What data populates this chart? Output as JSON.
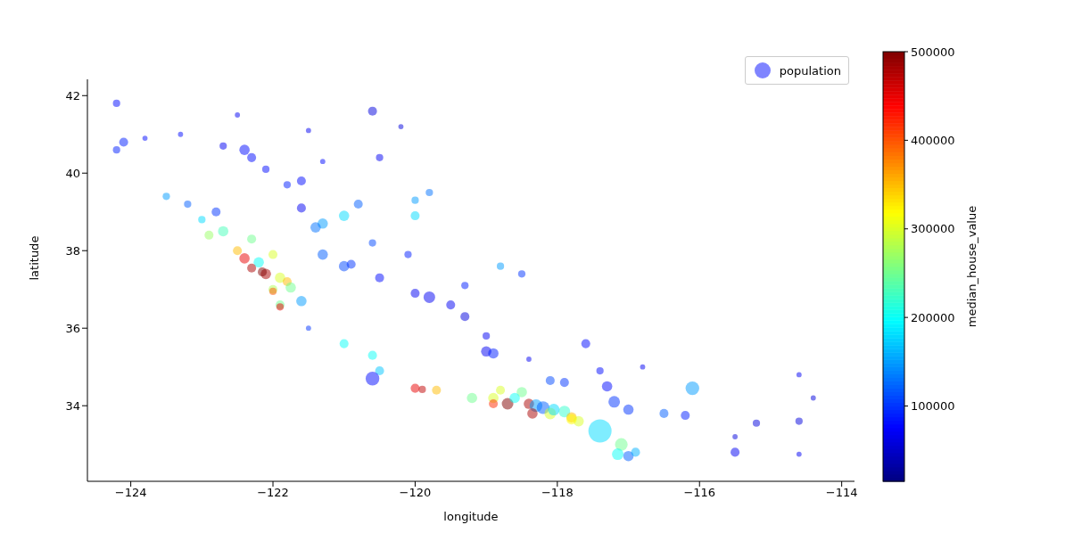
{
  "chart_data": {
    "type": "bubble",
    "xlabel": "longitude",
    "ylabel": "latitude",
    "clabel": "median_house_value",
    "xlim": [
      -124.61,
      -113.82
    ],
    "ylim": [
      32.05,
      42.42
    ],
    "xticks": [
      {
        "value": -124,
        "label": "−124"
      },
      {
        "value": -122,
        "label": "−122"
      },
      {
        "value": -120,
        "label": "−120"
      },
      {
        "value": -118,
        "label": "−118"
      },
      {
        "value": -116,
        "label": "−116"
      },
      {
        "value": -114,
        "label": "−114"
      }
    ],
    "yticks": [
      34,
      36,
      38,
      40,
      42
    ],
    "clim": [
      15000,
      500000
    ],
    "cticks": [
      100000,
      200000,
      300000,
      400000,
      500000
    ],
    "legend": "top right",
    "grid": false,
    "series": [
      {
        "name": "population",
        "x": [
          -124.2,
          -124.1,
          -124.2,
          -123.8,
          -123.5,
          -123.2,
          -122.4,
          -122.3,
          -122.5,
          -121.5,
          -120.6,
          -120.5,
          -121.6,
          -121.8,
          -121.6,
          -121.3,
          -121.0,
          -121.4,
          -122.3,
          -122.7,
          -122.9,
          -122.5,
          -122.4,
          -122.2,
          -122.0,
          -122.1,
          -121.9,
          -121.8,
          -122.0,
          -121.9,
          -121.6,
          -121.9,
          -121.3,
          -121.0,
          -120.9,
          -120.5,
          -120.0,
          -119.8,
          -119.5,
          -119.3,
          -119.0,
          -118.9,
          -119.0,
          -120.6,
          -120.5,
          -120.6,
          -120.0,
          -119.7,
          -119.2,
          -118.9,
          -118.7,
          -118.4,
          -118.3,
          -118.2,
          -118.1,
          -118.35,
          -117.9,
          -117.8,
          -117.7,
          -117.4,
          -117.2,
          -117.3,
          -117.0,
          -117.1,
          -117.15,
          -117.0,
          -116.9,
          -116.5,
          -116.2,
          -116.1,
          -115.5,
          -115.5,
          -115.2,
          -114.6,
          -114.6,
          -114.4,
          -114.6,
          -117.9,
          -118.1,
          -117.4,
          -116.8,
          -118.4,
          -117.6,
          -120.0,
          -119.8,
          -120.8,
          -122.8,
          -123.0,
          -122.0,
          -121.5,
          -121.0,
          -118.8,
          -118.5,
          -119.3,
          -118.5,
          -118.8,
          -120.0,
          -120.1,
          -120.6,
          -122.1,
          -121.3,
          -120.2,
          -123.3,
          -122.7,
          -118.9,
          -122.3,
          -122.15,
          -121.75,
          -118.6,
          -119.9,
          -117.8,
          -118.05
        ],
        "values": [
          41.8,
          40.8,
          40.6,
          40.9,
          39.4,
          39.2,
          40.6,
          40.4,
          41.5,
          41.1,
          41.6,
          40.4,
          39.8,
          39.7,
          39.1,
          38.7,
          38.9,
          38.6,
          38.3,
          38.5,
          38.4,
          38.0,
          37.8,
          37.7,
          37.9,
          37.4,
          37.3,
          37.2,
          37.0,
          36.6,
          36.7,
          36.55,
          37.9,
          37.6,
          37.65,
          37.3,
          36.9,
          36.8,
          36.6,
          36.3,
          35.4,
          35.35,
          35.8,
          35.3,
          34.9,
          34.7,
          34.45,
          34.4,
          34.2,
          34.2,
          34.05,
          34.05,
          34.0,
          33.95,
          33.8,
          33.8,
          33.85,
          33.7,
          33.6,
          33.35,
          34.1,
          34.5,
          33.9,
          33.0,
          32.75,
          32.7,
          32.8,
          33.8,
          33.75,
          34.45,
          32.8,
          33.2,
          33.55,
          34.8,
          33.6,
          34.2,
          32.75,
          34.6,
          34.65,
          34.9,
          35.0,
          35.2,
          35.6,
          39.3,
          39.5,
          39.2,
          39.0,
          38.8,
          36.95,
          36.0,
          35.6,
          34.4,
          34.35,
          37.1,
          37.4,
          37.6,
          38.9,
          37.9,
          38.2,
          40.1,
          40.3,
          41.2,
          41.0,
          40.7,
          34.05,
          37.55,
          37.45,
          37.05,
          34.2,
          34.42,
          33.65,
          33.9
        ],
        "sizes": [
          0.1,
          0.15,
          0.1,
          0.05,
          0.1,
          0.1,
          0.2,
          0.15,
          0.05,
          0.05,
          0.15,
          0.1,
          0.15,
          0.1,
          0.15,
          0.2,
          0.2,
          0.2,
          0.15,
          0.2,
          0.15,
          0.15,
          0.2,
          0.2,
          0.15,
          0.2,
          0.2,
          0.15,
          0.15,
          0.15,
          0.2,
          0.1,
          0.2,
          0.2,
          0.15,
          0.15,
          0.15,
          0.25,
          0.15,
          0.15,
          0.2,
          0.2,
          0.1,
          0.15,
          0.15,
          0.35,
          0.15,
          0.15,
          0.2,
          0.2,
          0.25,
          0.2,
          0.3,
          0.3,
          0.25,
          0.2,
          0.25,
          0.2,
          0.2,
          1,
          0.25,
          0.2,
          0.2,
          0.3,
          0.25,
          0.2,
          0.15,
          0.15,
          0.15,
          0.35,
          0.15,
          0.05,
          0.1,
          0.05,
          0.1,
          0.05,
          0.05,
          0.15,
          0.15,
          0.1,
          0.05,
          0.05,
          0.15,
          0.1,
          0.1,
          0.15,
          0.15,
          0.1,
          0.1,
          0.05,
          0.15,
          0.15,
          0.2,
          0.1,
          0.1,
          0.1,
          0.15,
          0.1,
          0.1,
          0.1,
          0.05,
          0.05,
          0.05,
          0.1,
          0.15,
          0.15,
          0.15,
          0.2,
          0.2,
          0.1,
          0.2,
          0.25
        ],
        "cvalues": [
          80000,
          90000,
          90000,
          80000,
          150000,
          120000,
          80000,
          80000,
          70000,
          70000,
          60000,
          70000,
          80000,
          90000,
          70000,
          150000,
          180000,
          130000,
          250000,
          230000,
          270000,
          350000,
          450000,
          200000,
          300000,
          480000,
          300000,
          350000,
          280000,
          250000,
          150000,
          450000,
          120000,
          110000,
          100000,
          80000,
          70000,
          70000,
          70000,
          60000,
          70000,
          90000,
          70000,
          200000,
          170000,
          80000,
          450000,
          350000,
          250000,
          300000,
          500000,
          480000,
          150000,
          120000,
          300000,
          480000,
          220000,
          350000,
          300000,
          180000,
          100000,
          80000,
          100000,
          250000,
          200000,
          120000,
          160000,
          120000,
          90000,
          150000,
          70000,
          60000,
          60000,
          70000,
          60000,
          60000,
          70000,
          100000,
          110000,
          80000,
          70000,
          70000,
          80000,
          150000,
          130000,
          120000,
          100000,
          180000,
          400000,
          100000,
          200000,
          300000,
          250000,
          90000,
          100000,
          150000,
          180000,
          90000,
          110000,
          80000,
          80000,
          60000,
          80000,
          70000,
          420000,
          480000,
          500000,
          250000,
          200000,
          470000,
          320000,
          180000
        ]
      }
    ]
  }
}
